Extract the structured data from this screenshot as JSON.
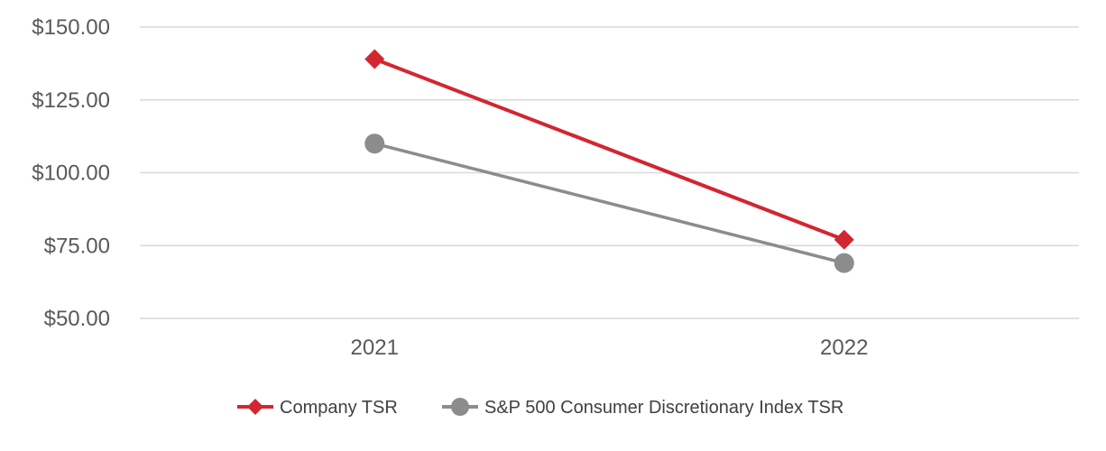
{
  "chart_data": {
    "type": "line",
    "title": "",
    "xlabel": "",
    "ylabel": "",
    "categories": [
      "2021",
      "2022"
    ],
    "ylim": [
      50,
      150
    ],
    "y_ticks": [
      50,
      75,
      100,
      125,
      150
    ],
    "y_tick_labels": [
      "$50.00",
      "$75.00",
      "$100.00",
      "$125.00",
      "$150.00"
    ],
    "grid": true,
    "legend_position": "bottom",
    "series": [
      {
        "name": "Company TSR",
        "values": [
          139,
          77
        ],
        "color": "#d22630",
        "marker": "diamond"
      },
      {
        "name": "S&P 500 Consumer Discretionary Index TSR",
        "values": [
          110,
          69
        ],
        "color": "#8c8c8c",
        "marker": "circle"
      }
    ]
  }
}
